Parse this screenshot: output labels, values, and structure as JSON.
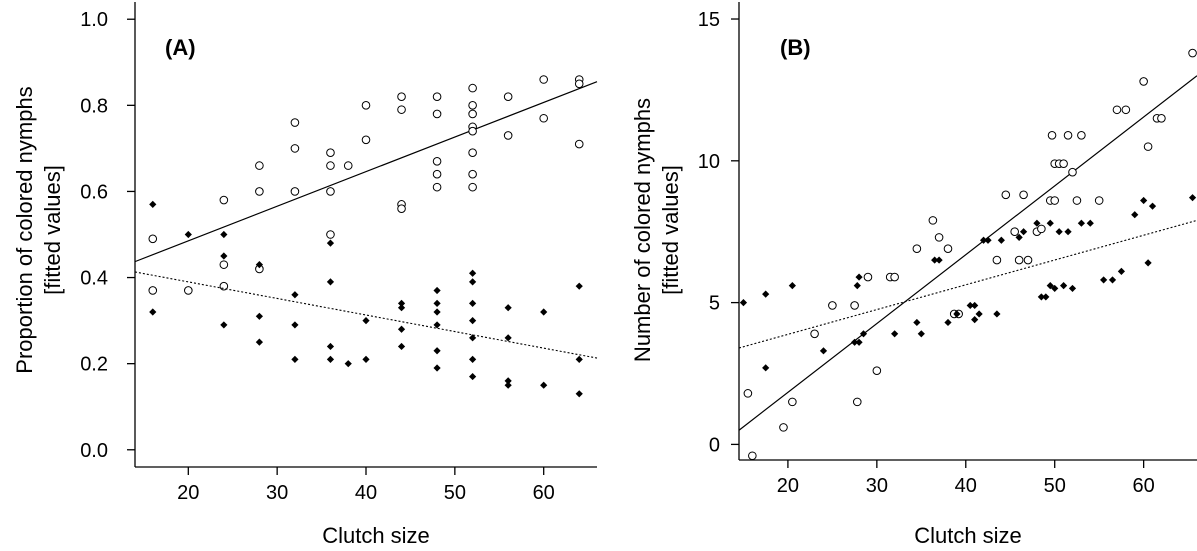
{
  "chart_data": [
    {
      "type": "scatter",
      "panel_label": "(A)",
      "xlabel": "Clutch size",
      "ylabel_lines": [
        "Proportion of colored nymphs",
        "[fitted values]"
      ],
      "xlim": [
        14,
        66
      ],
      "ylim": [
        -0.04,
        1.04
      ],
      "xticks": [
        20,
        30,
        40,
        50,
        60
      ],
      "yticks": [
        0.0,
        0.2,
        0.4,
        0.6,
        0.8,
        1.0
      ],
      "ytick_labels": [
        "0.0",
        "0.2",
        "0.4",
        "0.6",
        "0.8",
        "1.0"
      ],
      "grid": false,
      "series": [
        {
          "marker": "open-circle",
          "color": "#000000",
          "points": [
            [
              16,
              0.49
            ],
            [
              16,
              0.37
            ],
            [
              20,
              0.37
            ],
            [
              24,
              0.58
            ],
            [
              24,
              0.43
            ],
            [
              24,
              0.38
            ],
            [
              28,
              0.66
            ],
            [
              28,
              0.6
            ],
            [
              28,
              0.42
            ],
            [
              32,
              0.76
            ],
            [
              32,
              0.7
            ],
            [
              32,
              0.6
            ],
            [
              36,
              0.69
            ],
            [
              36,
              0.66
            ],
            [
              36,
              0.6
            ],
            [
              36,
              0.5
            ],
            [
              38,
              0.66
            ],
            [
              40,
              0.8
            ],
            [
              40,
              0.72
            ],
            [
              44,
              0.82
            ],
            [
              44,
              0.79
            ],
            [
              44,
              0.57
            ],
            [
              44,
              0.56
            ],
            [
              48,
              0.82
            ],
            [
              48,
              0.78
            ],
            [
              48,
              0.67
            ],
            [
              48,
              0.64
            ],
            [
              48,
              0.61
            ],
            [
              52,
              0.84
            ],
            [
              52,
              0.8
            ],
            [
              52,
              0.78
            ],
            [
              52,
              0.75
            ],
            [
              52,
              0.74
            ],
            [
              52,
              0.69
            ],
            [
              52,
              0.64
            ],
            [
              52,
              0.61
            ],
            [
              56,
              0.82
            ],
            [
              56,
              0.73
            ],
            [
              60,
              0.86
            ],
            [
              60,
              0.77
            ],
            [
              64,
              0.86
            ],
            [
              64,
              0.85
            ],
            [
              64,
              0.71
            ]
          ],
          "trend": {
            "style": "solid",
            "from": [
              14,
              0.437
            ],
            "to": [
              66,
              0.855
            ]
          }
        },
        {
          "marker": "filled-diamond",
          "color": "#000000",
          "points": [
            [
              16,
              0.57
            ],
            [
              16,
              0.32
            ],
            [
              20,
              0.5
            ],
            [
              24,
              0.5
            ],
            [
              24,
              0.45
            ],
            [
              24,
              0.29
            ],
            [
              28,
              0.43
            ],
            [
              28,
              0.31
            ],
            [
              28,
              0.25
            ],
            [
              32,
              0.36
            ],
            [
              32,
              0.29
            ],
            [
              32,
              0.21
            ],
            [
              36,
              0.48
            ],
            [
              36,
              0.39
            ],
            [
              36,
              0.24
            ],
            [
              36,
              0.21
            ],
            [
              38,
              0.2
            ],
            [
              40,
              0.3
            ],
            [
              40,
              0.21
            ],
            [
              44,
              0.34
            ],
            [
              44,
              0.33
            ],
            [
              44,
              0.28
            ],
            [
              44,
              0.24
            ],
            [
              48,
              0.37
            ],
            [
              48,
              0.34
            ],
            [
              48,
              0.32
            ],
            [
              48,
              0.29
            ],
            [
              48,
              0.23
            ],
            [
              48,
              0.19
            ],
            [
              52,
              0.41
            ],
            [
              52,
              0.39
            ],
            [
              52,
              0.34
            ],
            [
              52,
              0.3
            ],
            [
              52,
              0.26
            ],
            [
              52,
              0.21
            ],
            [
              52,
              0.17
            ],
            [
              56,
              0.33
            ],
            [
              56,
              0.26
            ],
            [
              56,
              0.16
            ],
            [
              56,
              0.15
            ],
            [
              60,
              0.32
            ],
            [
              60,
              0.15
            ],
            [
              64,
              0.38
            ],
            [
              64,
              0.21
            ],
            [
              64,
              0.13
            ]
          ],
          "trend": {
            "style": "dotted",
            "from": [
              14,
              0.413
            ],
            "to": [
              66,
              0.213
            ]
          }
        }
      ]
    },
    {
      "type": "scatter",
      "panel_label": "(B)",
      "xlabel": "Clutch size",
      "ylabel_lines": [
        "Number of colored nymphs",
        "[fitted values]"
      ],
      "xlim": [
        14.5,
        66
      ],
      "ylim": [
        -0.55,
        15.6
      ],
      "xticks": [
        20,
        30,
        40,
        50,
        60
      ],
      "yticks": [
        0,
        5,
        10,
        15
      ],
      "ytick_labels": [
        "0",
        "5",
        "10",
        "15"
      ],
      "grid": false,
      "series": [
        {
          "marker": "open-circle",
          "color": "#000000",
          "points": [
            [
              15.5,
              1.8
            ],
            [
              16,
              -0.4
            ],
            [
              19.5,
              0.6
            ],
            [
              20.5,
              1.5
            ],
            [
              23,
              3.9
            ],
            [
              25,
              4.9
            ],
            [
              27.5,
              4.9
            ],
            [
              27.8,
              1.5
            ],
            [
              29,
              5.9
            ],
            [
              30,
              2.6
            ],
            [
              31.5,
              5.9
            ],
            [
              32,
              5.9
            ],
            [
              34.5,
              6.9
            ],
            [
              36.3,
              7.9
            ],
            [
              37,
              7.3
            ],
            [
              38,
              6.9
            ],
            [
              38.7,
              4.6
            ],
            [
              39.2,
              4.6
            ],
            [
              43.5,
              6.5
            ],
            [
              44.5,
              8.8
            ],
            [
              45.5,
              7.5
            ],
            [
              46,
              6.5
            ],
            [
              46.5,
              8.8
            ],
            [
              47,
              6.5
            ],
            [
              48,
              7.5
            ],
            [
              48.5,
              7.6
            ],
            [
              49.5,
              8.6
            ],
            [
              49.7,
              10.9
            ],
            [
              50,
              8.6
            ],
            [
              50,
              9.9
            ],
            [
              50.5,
              9.9
            ],
            [
              51,
              9.9
            ],
            [
              51.5,
              10.9
            ],
            [
              52,
              9.6
            ],
            [
              52.5,
              8.6
            ],
            [
              53,
              10.9
            ],
            [
              55,
              8.6
            ],
            [
              57,
              11.8
            ],
            [
              58,
              11.8
            ],
            [
              60,
              12.8
            ],
            [
              60.5,
              10.5
            ],
            [
              61.5,
              11.5
            ],
            [
              62,
              11.5
            ],
            [
              65.5,
              13.8
            ]
          ],
          "trend": {
            "style": "solid",
            "from": [
              14.5,
              0.5
            ],
            "to": [
              66,
              13.0
            ]
          }
        },
        {
          "marker": "filled-diamond",
          "color": "#000000",
          "points": [
            [
              15,
              5.0
            ],
            [
              17.5,
              5.3
            ],
            [
              17.5,
              2.7
            ],
            [
              20.5,
              5.6
            ],
            [
              24,
              3.3
            ],
            [
              27.5,
              3.6
            ],
            [
              27.8,
              5.6
            ],
            [
              28,
              5.9
            ],
            [
              28,
              3.6
            ],
            [
              28.5,
              3.9
            ],
            [
              32,
              3.9
            ],
            [
              34.5,
              4.3
            ],
            [
              35,
              3.9
            ],
            [
              36.5,
              6.5
            ],
            [
              37,
              6.5
            ],
            [
              38,
              4.3
            ],
            [
              39,
              4.6
            ],
            [
              40.5,
              4.9
            ],
            [
              41,
              4.9
            ],
            [
              41,
              4.4
            ],
            [
              41.5,
              4.6
            ],
            [
              42,
              7.2
            ],
            [
              42.5,
              7.2
            ],
            [
              43.5,
              4.6
            ],
            [
              44,
              7.2
            ],
            [
              46,
              7.3
            ],
            [
              46.5,
              7.5
            ],
            [
              48,
              7.8
            ],
            [
              48.5,
              5.2
            ],
            [
              49,
              5.2
            ],
            [
              49.5,
              5.6
            ],
            [
              49.5,
              7.8
            ],
            [
              50,
              5.5
            ],
            [
              50.5,
              7.5
            ],
            [
              51,
              5.6
            ],
            [
              51.5,
              7.5
            ],
            [
              52,
              5.5
            ],
            [
              53,
              7.8
            ],
            [
              54,
              7.8
            ],
            [
              55.5,
              5.8
            ],
            [
              56.5,
              5.8
            ],
            [
              57.5,
              6.1
            ],
            [
              59,
              8.1
            ],
            [
              60,
              8.6
            ],
            [
              60.5,
              6.4
            ],
            [
              61,
              8.4
            ],
            [
              65.5,
              8.7
            ]
          ],
          "trend": {
            "style": "dotted",
            "from": [
              14.5,
              3.4
            ],
            "to": [
              66,
              7.9
            ]
          }
        }
      ]
    }
  ]
}
